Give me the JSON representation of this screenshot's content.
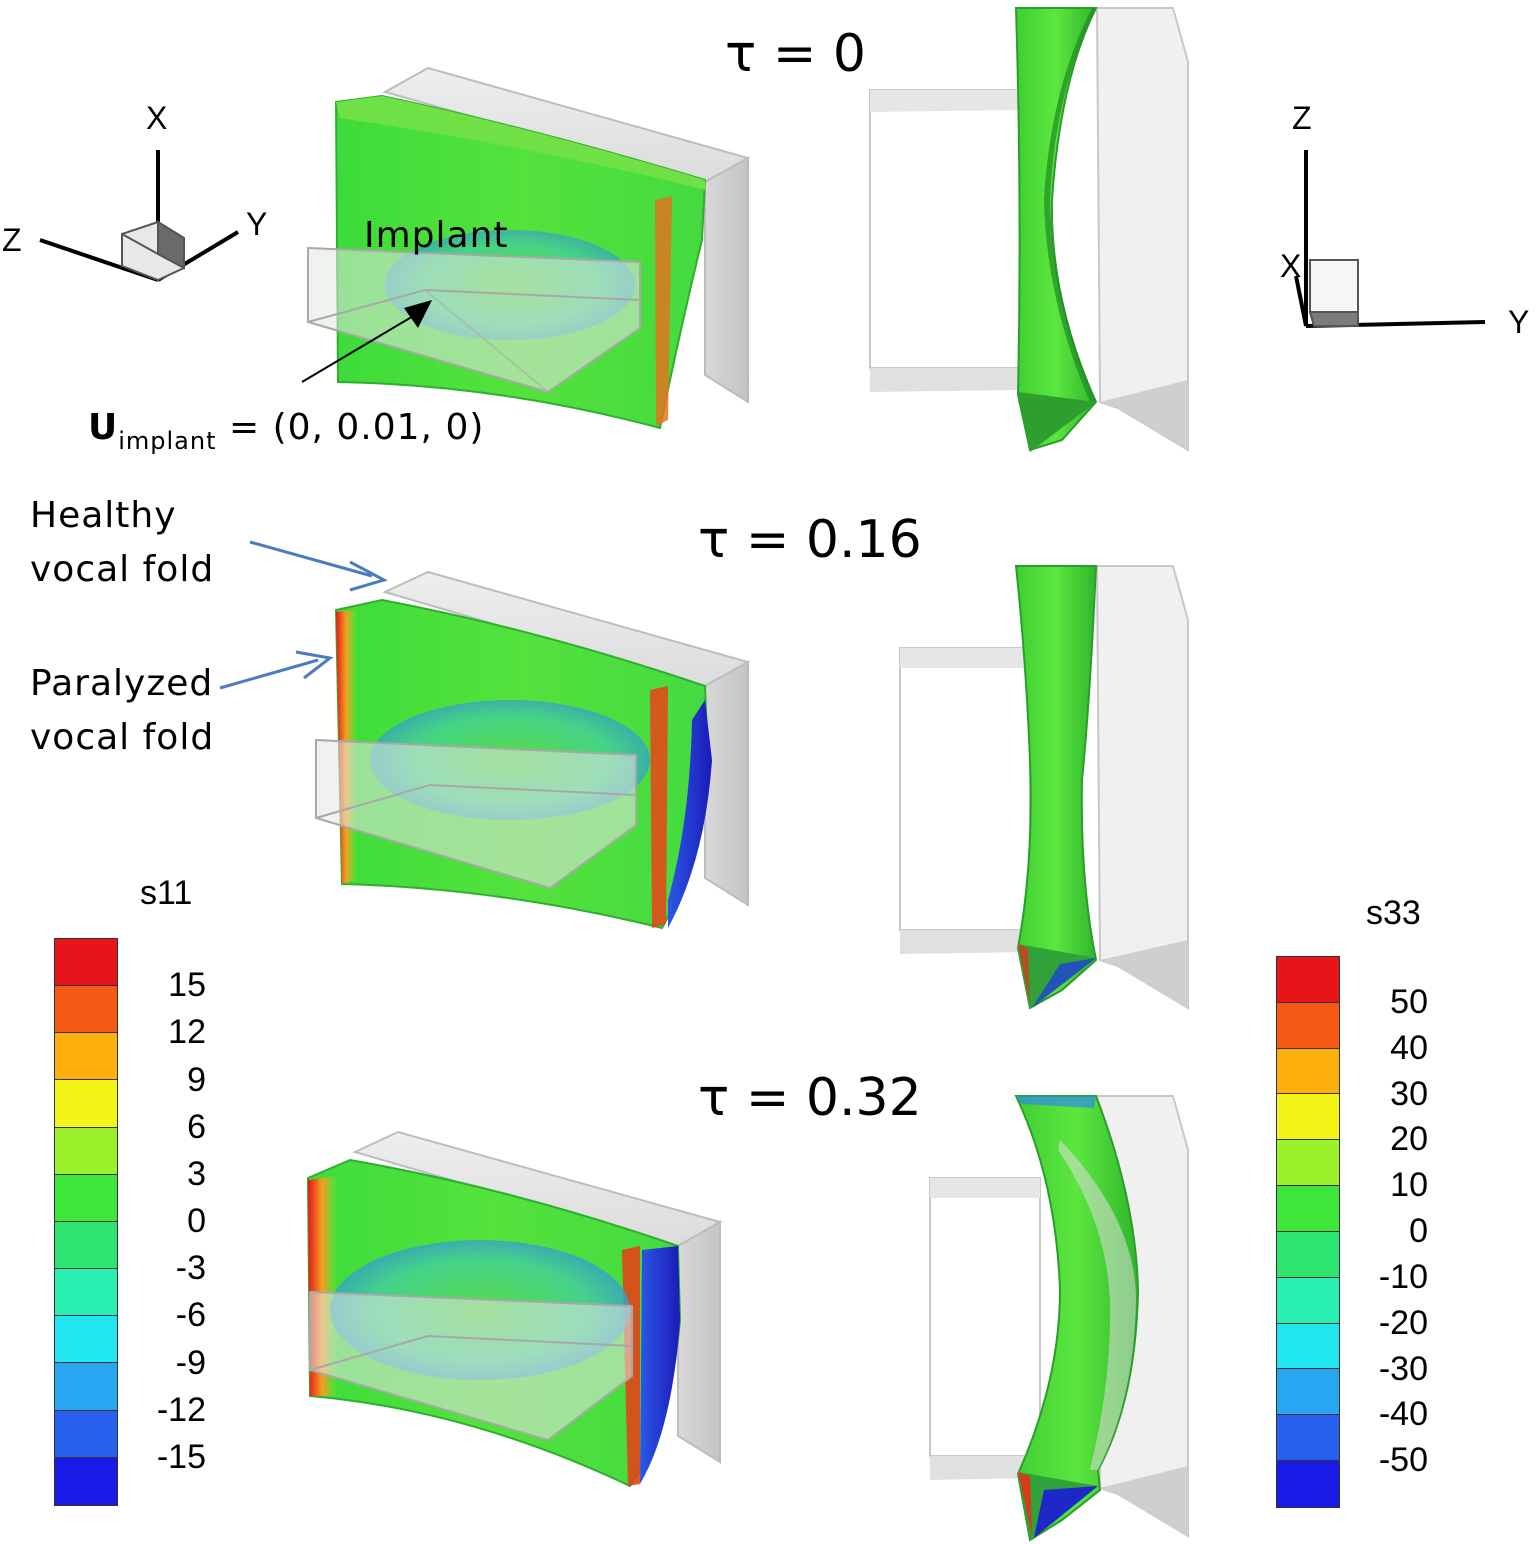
{
  "timesteps": [
    {
      "label": "τ = 0"
    },
    {
      "label": "τ = 0.16"
    },
    {
      "label": "τ = 0.32"
    }
  ],
  "annotations": {
    "implant": "Implant",
    "u_bold": "U",
    "u_sub": "implant",
    "u_value": " = (0, 0.01, 0)",
    "healthy_line1": "Healthy",
    "healthy_line2": "vocal fold",
    "paralyzed_line1": "Paralyzed",
    "paralyzed_line2": "vocal fold"
  },
  "axes_left": {
    "x": "X",
    "y": "Y",
    "z": "Z"
  },
  "axes_right": {
    "x": "X",
    "y": "Y",
    "z": "Z"
  },
  "colorbar_left": {
    "title": "s11",
    "ticks": [
      "15",
      "12",
      "9",
      "6",
      "3",
      "0",
      "-3",
      "-6",
      "-9",
      "-12",
      "-15"
    ],
    "colors": [
      "#e8141c",
      "#f45a14",
      "#fbae0c",
      "#f3f516",
      "#9bf22c",
      "#3fe63a",
      "#2ee470",
      "#29f0b0",
      "#21e6f0",
      "#28a6f2",
      "#2760ee",
      "#1a1ae8"
    ]
  },
  "colorbar_right": {
    "title": "s33",
    "ticks": [
      "50",
      "40",
      "30",
      "20",
      "10",
      "0",
      "-10",
      "-20",
      "-30",
      "-40",
      "-50"
    ],
    "colors": [
      "#e8141c",
      "#f45a14",
      "#fbae0c",
      "#f3f516",
      "#9bf22c",
      "#3fe63a",
      "#2ee470",
      "#29f0b0",
      "#21e6f0",
      "#28a6f2",
      "#2760ee",
      "#1a1ae8"
    ]
  }
}
